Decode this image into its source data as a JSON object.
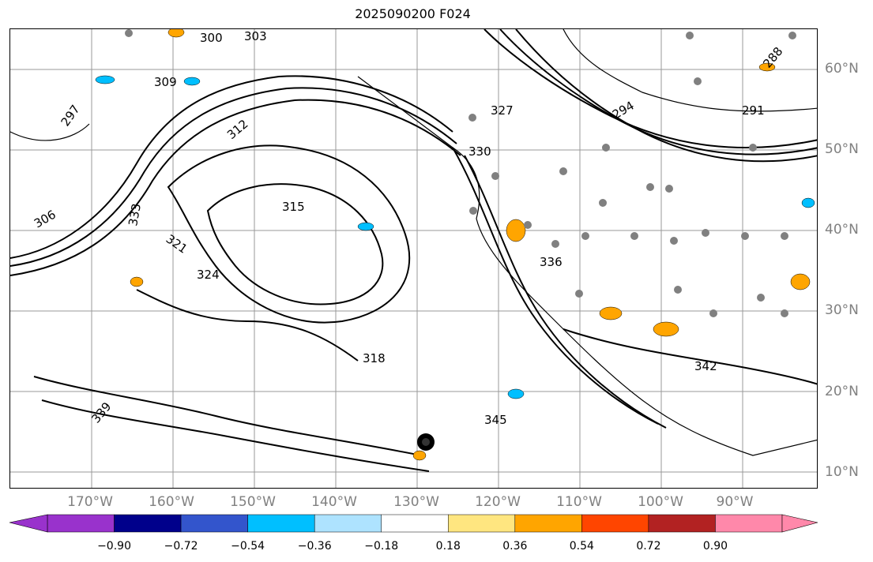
{
  "title": "2025090200 F024",
  "lat_labels": [
    "60°N",
    "50°N",
    "40°N",
    "30°N",
    "20°N",
    "10°N"
  ],
  "lon_labels": [
    "170°W",
    "160°W",
    "150°W",
    "140°W",
    "130°W",
    "120°W",
    "110°W",
    "100°W",
    "90°W"
  ],
  "contour_labels": [
    "300",
    "303",
    "297",
    "309",
    "306",
    "312",
    "315",
    "318",
    "321",
    "324",
    "327",
    "330",
    "333",
    "336",
    "339",
    "342",
    "345",
    "288",
    "291",
    "294"
  ],
  "colorbar": {
    "ticks": [
      "−0.90",
      "−0.72",
      "−0.54",
      "−0.36",
      "−0.18",
      "0.18",
      "0.36",
      "0.54",
      "0.72",
      "0.90"
    ],
    "colors": [
      "#9932cc",
      "#00008b",
      "#3355cc",
      "#00bfff",
      "#aee3ff",
      "#ffffff",
      "#ffe680",
      "#ffa500",
      "#ff4500",
      "#b22222",
      "#ff88aa"
    ]
  },
  "colors": {
    "grid": "#999999",
    "coast": "#000000",
    "station": "#808080",
    "positive_fill": "#ffa500",
    "negative_fill": "#00bfff"
  }
}
